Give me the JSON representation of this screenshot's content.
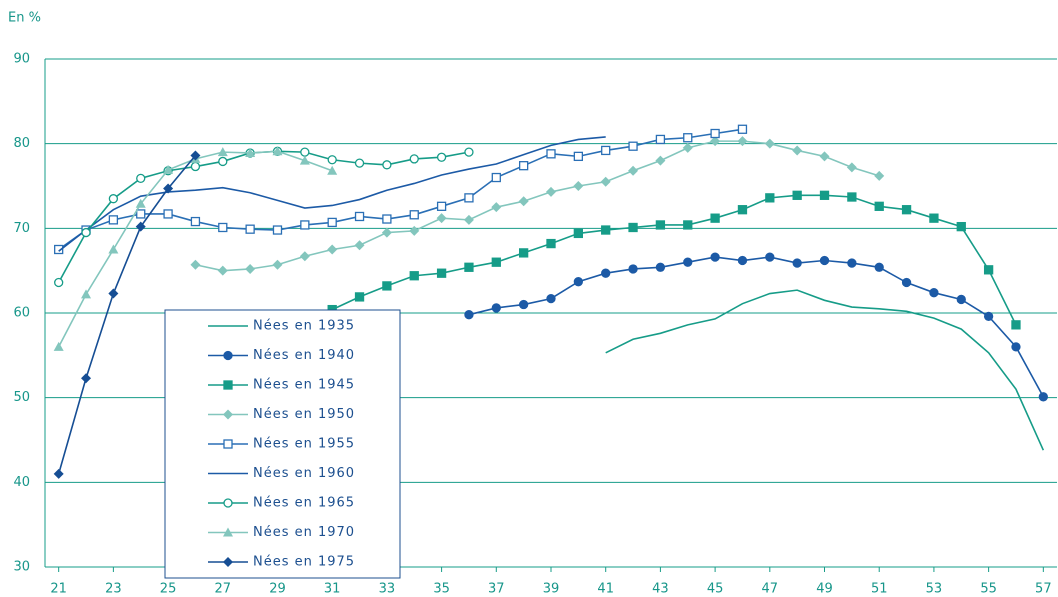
{
  "chart_data": {
    "type": "line",
    "ylabel": "En %",
    "x": [
      21,
      22,
      23,
      24,
      25,
      26,
      27,
      28,
      29,
      30,
      31,
      32,
      33,
      34,
      35,
      36,
      37,
      38,
      39,
      40,
      41,
      42,
      43,
      44,
      45,
      46,
      47,
      48,
      49,
      50,
      51,
      52,
      53,
      54,
      55,
      56,
      57
    ],
    "xlim": [
      20.5,
      57.5
    ],
    "xticks": [
      21,
      23,
      25,
      27,
      29,
      31,
      33,
      35,
      37,
      39,
      41,
      43,
      45,
      47,
      49,
      51,
      53,
      55,
      57
    ],
    "ylim": [
      30,
      90
    ],
    "yticks": [
      30,
      40,
      50,
      60,
      70,
      80,
      90
    ],
    "grid": true,
    "series": [
      {
        "name": "Nées en 1935",
        "color": "#169c88",
        "marker": "none",
        "values": [
          null,
          null,
          null,
          null,
          null,
          null,
          null,
          null,
          null,
          null,
          null,
          null,
          null,
          null,
          null,
          null,
          null,
          null,
          null,
          null,
          55.3,
          56.9,
          57.6,
          58.6,
          59.3,
          61.1,
          62.3,
          62.7,
          61.5,
          60.7,
          60.5,
          60.2,
          59.4,
          58.1,
          55.3,
          51.0,
          43.8
        ]
      },
      {
        "name": "Nées en 1940",
        "color": "#1c5aa6",
        "marker": "circle",
        "values": [
          null,
          null,
          null,
          null,
          null,
          null,
          null,
          null,
          null,
          null,
          null,
          null,
          null,
          null,
          null,
          59.8,
          60.6,
          61.0,
          61.7,
          63.7,
          64.7,
          65.2,
          65.4,
          66.0,
          66.6,
          66.2,
          66.6,
          65.9,
          66.2,
          65.9,
          65.4,
          63.6,
          62.4,
          61.6,
          59.6,
          56.0,
          50.1
        ]
      },
      {
        "name": "Nées en 1945",
        "color": "#169c88",
        "marker": "square",
        "values": [
          null,
          null,
          null,
          null,
          null,
          null,
          null,
          null,
          null,
          null,
          60.4,
          61.9,
          63.2,
          64.4,
          64.7,
          65.4,
          66.0,
          67.1,
          68.2,
          69.4,
          69.8,
          70.1,
          70.4,
          70.4,
          71.2,
          72.2,
          73.6,
          73.9,
          73.9,
          73.7,
          72.6,
          72.2,
          71.2,
          70.2,
          65.1,
          58.6,
          null
        ]
      },
      {
        "name": "Nées en 1950",
        "color": "#83c6bd",
        "marker": "diamond",
        "values": [
          null,
          null,
          null,
          null,
          null,
          65.7,
          65.0,
          65.2,
          65.7,
          66.7,
          67.5,
          68.0,
          69.5,
          69.7,
          71.2,
          71.0,
          72.5,
          73.2,
          74.3,
          75.0,
          75.5,
          76.8,
          78.0,
          79.5,
          80.3,
          80.3,
          80.0,
          79.2,
          78.5,
          77.2,
          76.2,
          null,
          null,
          null,
          null,
          null,
          null
        ]
      },
      {
        "name": "Nées en 1955",
        "color": "#2a6fb5",
        "marker": "square-open",
        "values": [
          67.5,
          69.8,
          71.0,
          71.7,
          71.7,
          70.8,
          70.1,
          69.9,
          69.8,
          70.4,
          70.7,
          71.4,
          71.1,
          71.6,
          72.6,
          73.6,
          76.0,
          77.4,
          78.8,
          78.5,
          79.2,
          79.7,
          80.5,
          80.7,
          81.2,
          81.7,
          null,
          null,
          null,
          null,
          null,
          null,
          null,
          null,
          null,
          null,
          null
        ]
      },
      {
        "name": "Nées en 1960",
        "color": "#1c5aa6",
        "marker": "none",
        "values": [
          67.3,
          69.8,
          72.2,
          73.8,
          74.3,
          74.5,
          74.8,
          74.2,
          73.3,
          72.4,
          72.7,
          73.4,
          74.5,
          75.3,
          76.3,
          77.0,
          77.6,
          78.7,
          79.8,
          80.5,
          80.8,
          null,
          null,
          null,
          null,
          null,
          null,
          null,
          null,
          null,
          null,
          null,
          null,
          null,
          null,
          null,
          null
        ]
      },
      {
        "name": "Nées en 1965",
        "color": "#169c88",
        "marker": "circle-open",
        "values": [
          63.6,
          69.5,
          73.5,
          75.9,
          76.8,
          77.3,
          77.9,
          78.9,
          79.1,
          79.0,
          78.1,
          77.7,
          77.5,
          78.2,
          78.4,
          79.0,
          null,
          null,
          null,
          null,
          null,
          null,
          null,
          null,
          null,
          null,
          null,
          null,
          null,
          null,
          null,
          null,
          null,
          null,
          null,
          null,
          null
        ]
      },
      {
        "name": "Nées en 1970",
        "color": "#83c6bd",
        "marker": "triangle",
        "values": [
          56.0,
          62.2,
          67.5,
          72.9,
          76.9,
          78.2,
          79.0,
          78.9,
          79.1,
          78.0,
          76.8,
          null,
          null,
          null,
          null,
          null,
          null,
          null,
          null,
          null,
          null,
          null,
          null,
          null,
          null,
          null,
          null,
          null,
          null,
          null,
          null,
          null,
          null,
          null,
          null,
          null,
          null
        ]
      },
      {
        "name": "Nées en 1975",
        "color": "#164e94",
        "marker": "diamond",
        "values": [
          41.0,
          52.3,
          62.3,
          70.2,
          74.7,
          78.6,
          null,
          null,
          null,
          null,
          null,
          null,
          null,
          null,
          null,
          null,
          null,
          null,
          null,
          null,
          null,
          null,
          null,
          null,
          null,
          null,
          null,
          null,
          null,
          null,
          null,
          null,
          null,
          null,
          null,
          null,
          null
        ]
      }
    ]
  }
}
